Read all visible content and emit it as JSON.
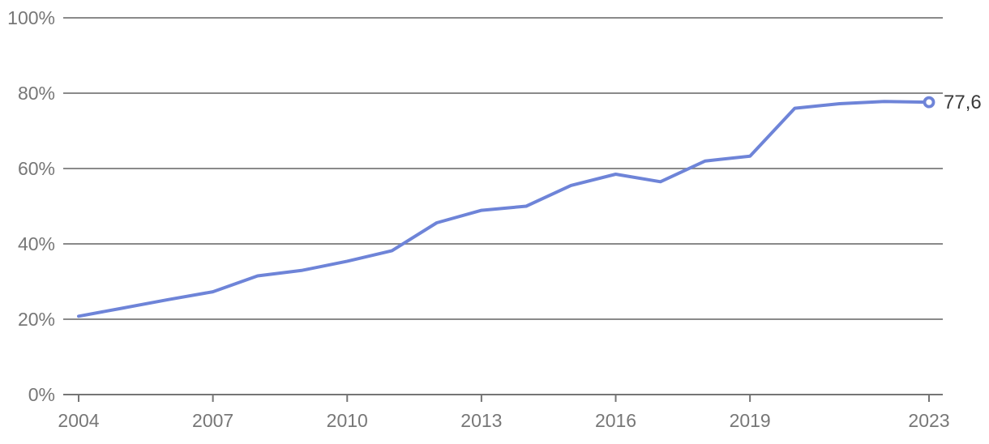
{
  "chart_data": {
    "type": "line",
    "title": "",
    "x": [
      2004,
      2005,
      2006,
      2007,
      2008,
      2009,
      2010,
      2011,
      2012,
      2013,
      2014,
      2015,
      2016,
      2017,
      2018,
      2019,
      2020,
      2021,
      2022,
      2023
    ],
    "values": [
      20.8,
      23.0,
      25.2,
      27.3,
      31.5,
      33.0,
      35.4,
      38.2,
      45.6,
      48.9,
      50.0,
      55.5,
      58.5,
      56.5,
      62.0,
      63.3,
      76.0,
      77.2,
      77.8,
      77.6
    ],
    "end_label": "77,6",
    "last_point": {
      "x": 2023,
      "value": 77.6,
      "marker": "open-circle"
    },
    "xticks": [
      {
        "value": 2004,
        "label": "2004"
      },
      {
        "value": 2007,
        "label": "2007"
      },
      {
        "value": 2010,
        "label": "2010"
      },
      {
        "value": 2013,
        "label": "2013"
      },
      {
        "value": 2016,
        "label": "2016"
      },
      {
        "value": 2019,
        "label": "2019"
      },
      {
        "value": 2023,
        "label": "2023"
      }
    ],
    "yticks": [
      {
        "value": 0,
        "label": "0%"
      },
      {
        "value": 20,
        "label": "20%"
      },
      {
        "value": 40,
        "label": "40%"
      },
      {
        "value": 60,
        "label": "60%"
      },
      {
        "value": 80,
        "label": "80%"
      },
      {
        "value": 100,
        "label": "100%"
      }
    ],
    "xlim": [
      2004,
      2023
    ],
    "ylim": [
      0,
      100
    ],
    "grid": true,
    "legend_position": "none",
    "colors": {
      "line": "#6E84D8",
      "marker_fill": "#FFFFFF",
      "marker_stroke": "#6E84D8",
      "gridline": "#8A8A8A",
      "axis_line": "#757575",
      "tick_label": "#777777",
      "end_label": "#3A3A3A",
      "background": "#FFFFFF"
    }
  }
}
